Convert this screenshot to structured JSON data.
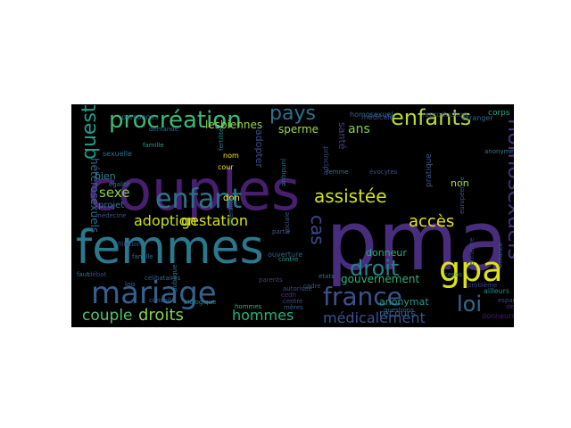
{
  "wordcloud": {
    "background": "#000000",
    "words": [
      {
        "text": "pma",
        "color": "#472d7b"
      },
      {
        "text": "couples",
        "color": "#481f70"
      },
      {
        "text": "femmes",
        "color": "#2a788e"
      },
      {
        "text": "mariage",
        "color": "#35608d"
      },
      {
        "text": "enfant",
        "color": "#2c728e"
      },
      {
        "text": "procréation",
        "color": "#3bbb75"
      },
      {
        "text": "enfants",
        "color": "#b5de2b"
      },
      {
        "text": "gpa",
        "color": "#dde318"
      },
      {
        "text": "france",
        "color": "#3b528b"
      },
      {
        "text": "homosexuels",
        "color": "#46327e"
      },
      {
        "text": "droit",
        "color": "#26828e"
      },
      {
        "text": "assistée",
        "color": "#d0e11c"
      },
      {
        "text": "loi",
        "color": "#31688e"
      },
      {
        "text": "pays",
        "color": "#2c728e"
      },
      {
        "text": "question",
        "color": "#1f9e89"
      },
      {
        "text": "accès",
        "color": "#e2e418"
      },
      {
        "text": "cas",
        "color": "#3e4a89"
      },
      {
        "text": "adoption",
        "color": "#c8e020"
      },
      {
        "text": "gestation",
        "color": "#d8e219"
      },
      {
        "text": "droits",
        "color": "#84d44b"
      },
      {
        "text": "hommes",
        "color": "#2ab07f"
      },
      {
        "text": "couple",
        "color": "#54c568"
      },
      {
        "text": "sexe",
        "color": "#86d549"
      },
      {
        "text": "ans",
        "color": "#7fd34e"
      },
      {
        "text": "médicalement",
        "color": "#3b528b"
      },
      {
        "text": "lesbiennes",
        "color": "#95d840"
      },
      {
        "text": "sperme",
        "color": "#a0da39"
      },
      {
        "text": "hétérosexuels",
        "color": "#31688e"
      },
      {
        "text": "gouvernement",
        "color": "#2db27d"
      },
      {
        "text": "anonymat",
        "color": "#1f9a8a"
      },
      {
        "text": "recours",
        "color": "#33638d"
      },
      {
        "text": "donneur",
        "color": "#29af7f"
      },
      {
        "text": "non",
        "color": "#b0dd2f"
      },
      {
        "text": "don",
        "color": "#fde725"
      },
      {
        "text": "adopter",
        "color": "#3e4c8a"
      },
      {
        "text": "bien",
        "color": "#25858e"
      },
      {
        "text": "projet",
        "color": "#2a788e"
      },
      {
        "text": "santé",
        "color": "#414487"
      },
      {
        "text": "homosexuel",
        "color": "#2f6c8e"
      },
      {
        "text": "médicale",
        "color": "#3a548c"
      },
      {
        "text": "reproduction",
        "color": "#3f4889"
      },
      {
        "text": "étranger",
        "color": "#31678e"
      },
      {
        "text": "corps",
        "color": "#22a884"
      },
      {
        "text": "sexuelle",
        "color": "#2e6e8e"
      },
      {
        "text": "personnes",
        "color": "#306a8e"
      },
      {
        "text": "demande",
        "color": "#2d708e"
      },
      {
        "text": "famille",
        "color": "#1fa088"
      },
      {
        "text": "fertilité",
        "color": "#24878e"
      },
      {
        "text": "principe",
        "color": "#3e4989"
      },
      {
        "text": "pratique",
        "color": "#38598c"
      },
      {
        "text": "nom",
        "color": "#fde725"
      },
      {
        "text": "cour",
        "color": "#e5e419"
      },
      {
        "text": "égalité",
        "color": "#2c738e"
      },
      {
        "text": "médecine",
        "color": "#3b518b"
      },
      {
        "text": "parents",
        "color": "#433e85"
      },
      {
        "text": "ouverture",
        "color": "#34618d"
      },
      {
        "text": "contre",
        "color": "#1e9c89"
      },
      {
        "text": "espagne",
        "color": "#3f4788"
      },
      {
        "text": "donneurs",
        "color": "#481b6d"
      },
      {
        "text": "ailleurs",
        "color": "#23898e"
      },
      {
        "text": "cecos",
        "color": "#2a768e"
      },
      {
        "text": "anonyme",
        "color": "#297b8e"
      },
      {
        "text": "femme",
        "color": "#2a778e"
      },
      {
        "text": "débat",
        "color": "#3e4a89"
      },
      {
        "text": "lois",
        "color": "#2f6b8e"
      },
      {
        "text": "faut",
        "color": "#287d8e"
      },
      {
        "text": "centre",
        "color": "#3c508b"
      },
      {
        "text": "etats",
        "color": "#2b748e"
      },
      {
        "text": "questions",
        "color": "#2c718e"
      },
      {
        "text": "cedh",
        "color": "#463480"
      },
      {
        "text": "biologique",
        "color": "#26828e"
      },
      {
        "text": "conseil",
        "color": "#2f6b8e"
      },
      {
        "text": "célibataires",
        "color": "#34618d"
      },
      {
        "text": "filiation",
        "color": "#3d4e8a"
      },
      {
        "text": "famille",
        "color": "#2e6e8e"
      },
      {
        "text": "hommes",
        "color": "#2ab07f"
      },
      {
        "text": "partie",
        "color": "#38588c"
      },
      {
        "text": "cadre",
        "color": "#3a538b"
      },
      {
        "text": "autorisée",
        "color": "#3b528b"
      },
      {
        "text": "déjà",
        "color": "#482576"
      },
      {
        "text": "problème",
        "color": "#404688"
      },
      {
        "text": "enfance",
        "color": "#33638d"
      },
      {
        "text": "permettre",
        "color": "#3f4788"
      },
      {
        "text": "juridique",
        "color": "#2a768e"
      },
      {
        "text": "sociale",
        "color": "#3b528b"
      },
      {
        "text": "évocytes",
        "color": "#3d4e8a"
      },
      {
        "text": "mères",
        "color": "#355f8d"
      },
      {
        "text": "infertilité",
        "color": "#2e6f8e"
      },
      {
        "text": "européenne",
        "color": "#38588c"
      },
      {
        "text": "publique",
        "color": "#2b758e"
      }
    ]
  }
}
